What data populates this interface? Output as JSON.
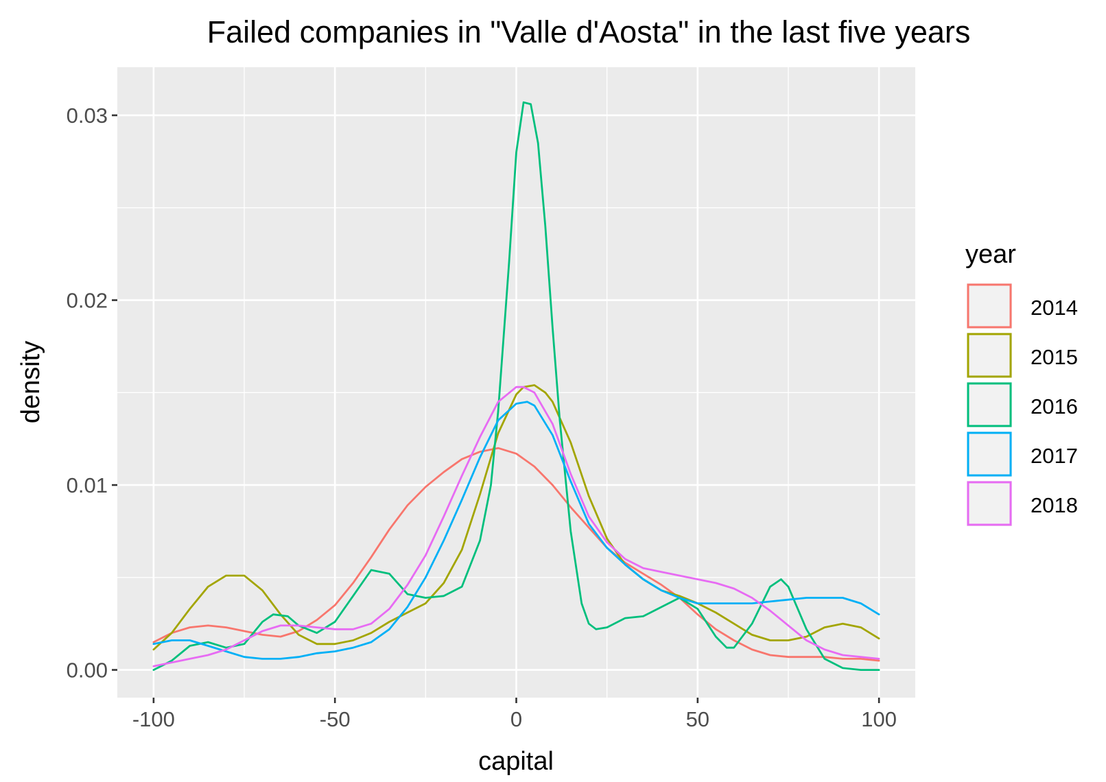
{
  "chart_data": {
    "type": "line",
    "title": "Failed companies in \"Valle d'Aosta\" in the last five years",
    "xlabel": "capital",
    "ylabel": "density",
    "xlim": [
      -110,
      110
    ],
    "ylim": [
      -0.0015,
      0.0326
    ],
    "x_ticks": [
      -100,
      -50,
      0,
      50,
      100
    ],
    "x_tick_labels": [
      "-100",
      "-50",
      "0",
      "50",
      "100"
    ],
    "y_ticks": [
      0,
      0.01,
      0.02,
      0.03
    ],
    "y_tick_labels": [
      "0.00",
      "0.01",
      "0.02",
      "0.03"
    ],
    "grid": true,
    "legend": {
      "title": "year",
      "position": "right"
    },
    "series": [
      {
        "name": "2014",
        "color": "#F8766D",
        "x": [
          -100,
          -95,
          -90,
          -85,
          -80,
          -75,
          -70,
          -65,
          -60,
          -55,
          -50,
          -45,
          -40,
          -35,
          -30,
          -25,
          -20,
          -15,
          -10,
          -5,
          0,
          5,
          10,
          15,
          20,
          25,
          30,
          35,
          40,
          45,
          50,
          55,
          60,
          65,
          70,
          75,
          80,
          85,
          90,
          95,
          100
        ],
        "y": [
          0.0015,
          0.002,
          0.0023,
          0.0024,
          0.0023,
          0.0021,
          0.0019,
          0.0018,
          0.0021,
          0.0027,
          0.0035,
          0.0047,
          0.0061,
          0.0076,
          0.0089,
          0.0099,
          0.0107,
          0.0114,
          0.0118,
          0.012,
          0.0117,
          0.011,
          0.01,
          0.0088,
          0.0077,
          0.0066,
          0.0058,
          0.0052,
          0.0046,
          0.0039,
          0.003,
          0.0022,
          0.0016,
          0.0011,
          0.0008,
          0.0007,
          0.0007,
          0.0007,
          0.0006,
          0.0006,
          0.0005
        ]
      },
      {
        "name": "2015",
        "color": "#A3A500",
        "x": [
          -100,
          -95,
          -90,
          -85,
          -80,
          -75,
          -70,
          -65,
          -60,
          -55,
          -50,
          -45,
          -40,
          -35,
          -30,
          -25,
          -20,
          -15,
          -10,
          -5,
          0,
          2,
          5,
          8,
          10,
          15,
          20,
          25,
          30,
          35,
          40,
          45,
          50,
          55,
          60,
          65,
          70,
          75,
          80,
          85,
          90,
          95,
          100
        ],
        "y": [
          0.0011,
          0.002,
          0.0033,
          0.0045,
          0.0051,
          0.0051,
          0.0043,
          0.003,
          0.0019,
          0.0014,
          0.0014,
          0.0016,
          0.002,
          0.0026,
          0.0031,
          0.0036,
          0.0047,
          0.0065,
          0.0095,
          0.0128,
          0.0149,
          0.0153,
          0.0154,
          0.015,
          0.0145,
          0.0123,
          0.0094,
          0.0071,
          0.0057,
          0.0049,
          0.0043,
          0.004,
          0.0036,
          0.0031,
          0.0025,
          0.0019,
          0.0016,
          0.0016,
          0.0018,
          0.0023,
          0.0025,
          0.0023,
          0.0017
        ]
      },
      {
        "name": "2016",
        "color": "#00BF7D",
        "x": [
          -100,
          -95,
          -90,
          -85,
          -80,
          -75,
          -70,
          -67,
          -63,
          -60,
          -55,
          -50,
          -45,
          -40,
          -35,
          -30,
          -25,
          -20,
          -15,
          -10,
          -7,
          -5,
          -2,
          0,
          2,
          4,
          6,
          8,
          10,
          12,
          15,
          18,
          20,
          22,
          25,
          30,
          35,
          40,
          45,
          50,
          55,
          58,
          60,
          65,
          70,
          73,
          75,
          80,
          85,
          90,
          95,
          100
        ],
        "y": [
          0.0,
          0.0005,
          0.0013,
          0.0015,
          0.0012,
          0.0014,
          0.0026,
          0.003,
          0.0029,
          0.0024,
          0.002,
          0.0026,
          0.004,
          0.0054,
          0.0052,
          0.0041,
          0.0039,
          0.004,
          0.0045,
          0.007,
          0.01,
          0.014,
          0.022,
          0.028,
          0.0307,
          0.0306,
          0.0285,
          0.024,
          0.0185,
          0.0135,
          0.0075,
          0.0036,
          0.0025,
          0.0022,
          0.0023,
          0.0028,
          0.0029,
          0.0034,
          0.0039,
          0.0033,
          0.0018,
          0.0012,
          0.0012,
          0.0025,
          0.0045,
          0.0049,
          0.0045,
          0.0022,
          0.0006,
          0.0001,
          0.0,
          0.0
        ]
      },
      {
        "name": "2017",
        "color": "#00B0F6",
        "x": [
          -100,
          -95,
          -90,
          -85,
          -80,
          -75,
          -70,
          -65,
          -60,
          -55,
          -50,
          -45,
          -40,
          -35,
          -30,
          -25,
          -20,
          -15,
          -10,
          -5,
          0,
          3,
          5,
          10,
          15,
          20,
          25,
          30,
          35,
          40,
          45,
          50,
          55,
          60,
          65,
          70,
          75,
          80,
          85,
          90,
          95,
          100
        ],
        "y": [
          0.0014,
          0.0016,
          0.0016,
          0.0013,
          0.001,
          0.0007,
          0.0006,
          0.0006,
          0.0007,
          0.0009,
          0.001,
          0.0012,
          0.0015,
          0.0022,
          0.0034,
          0.005,
          0.007,
          0.0092,
          0.0115,
          0.0135,
          0.0144,
          0.0145,
          0.0143,
          0.0127,
          0.0102,
          0.0079,
          0.0066,
          0.0057,
          0.0049,
          0.0043,
          0.0039,
          0.0036,
          0.0036,
          0.0036,
          0.0036,
          0.0037,
          0.0038,
          0.0039,
          0.0039,
          0.0039,
          0.0036,
          0.003
        ]
      },
      {
        "name": "2018",
        "color": "#E76BF3",
        "x": [
          -100,
          -95,
          -90,
          -85,
          -80,
          -75,
          -70,
          -65,
          -60,
          -55,
          -50,
          -45,
          -40,
          -35,
          -30,
          -25,
          -20,
          -15,
          -10,
          -5,
          0,
          2,
          5,
          10,
          15,
          20,
          25,
          30,
          35,
          40,
          45,
          50,
          55,
          60,
          65,
          70,
          75,
          80,
          85,
          90,
          95,
          100
        ],
        "y": [
          0.0002,
          0.0004,
          0.0006,
          0.0008,
          0.0011,
          0.0016,
          0.0021,
          0.0024,
          0.0024,
          0.0023,
          0.0022,
          0.0022,
          0.0025,
          0.0033,
          0.0046,
          0.0062,
          0.0083,
          0.0105,
          0.0126,
          0.0145,
          0.0153,
          0.0153,
          0.015,
          0.0133,
          0.0106,
          0.0083,
          0.0069,
          0.006,
          0.0055,
          0.0053,
          0.0051,
          0.0049,
          0.0047,
          0.0044,
          0.0039,
          0.0032,
          0.0024,
          0.0016,
          0.0011,
          0.0008,
          0.0007,
          0.0006
        ]
      }
    ]
  }
}
